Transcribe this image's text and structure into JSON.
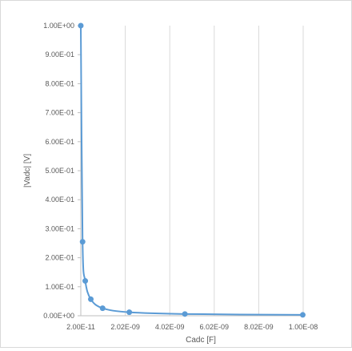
{
  "chart_data": {
    "type": "scatter",
    "title": "",
    "xlabel": "Cadc [F]",
    "ylabel": "|Vadc| [V]",
    "xlim": [
      2e-11,
      1.002e-08
    ],
    "ylim": [
      0,
      1.0
    ],
    "x_ticks": [
      "2.00E-11",
      "2.02E-09",
      "4.02E-09",
      "6.02E-09",
      "8.02E-09",
      "1.00E-08"
    ],
    "y_ticks": [
      "0.00E+00",
      "1.00E-01",
      "2.00E-01",
      "3.00E-01",
      "4.00E-01",
      "5.00E-01",
      "6.00E-01",
      "7.00E-01",
      "8.00E-01",
      "9.00E-01",
      "1.00E+00"
    ],
    "grid": "vertical",
    "smooth_line": true,
    "color": "#5b9bd5",
    "series": [
      {
        "x": [
          2e-11,
          1e-10,
          2.2e-10,
          4.7e-10,
          1e-09,
          2.2e-09,
          4.7e-09,
          1e-08
        ],
        "y": [
          1.0,
          0.255,
          0.12,
          0.057,
          0.026,
          0.012,
          0.006,
          0.003
        ]
      }
    ]
  }
}
